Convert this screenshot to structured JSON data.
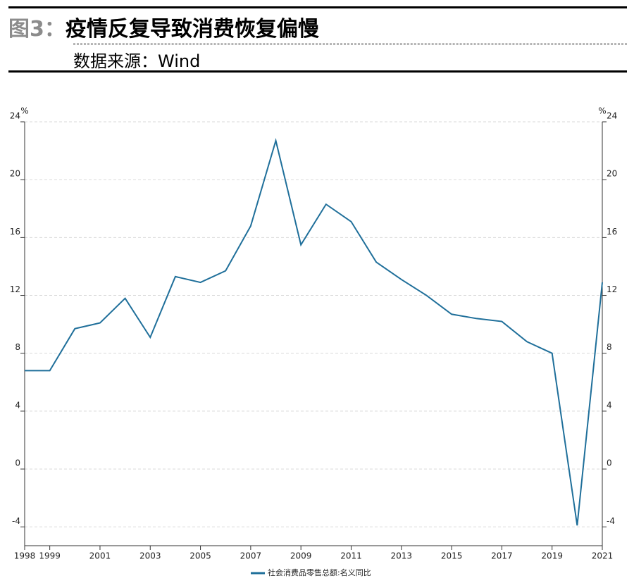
{
  "chart_data": {
    "type": "line",
    "figure_label": "图3：",
    "title": "疫情反复导致消费恢复偏慢",
    "source": "数据来源：Wind",
    "y_unit": "%",
    "y2_unit": "%",
    "x": [
      1998,
      1999,
      2000,
      2001,
      2002,
      2003,
      2004,
      2005,
      2006,
      2007,
      2008,
      2009,
      2010,
      2011,
      2012,
      2013,
      2014,
      2015,
      2016,
      2017,
      2018,
      2019,
      2020,
      2021
    ],
    "series": [
      {
        "name": "社会消费品零售总额:名义同比",
        "color": "#1f6f9a",
        "values": [
          6.8,
          6.8,
          9.7,
          10.1,
          11.8,
          9.1,
          13.3,
          12.9,
          13.7,
          16.8,
          22.7,
          15.5,
          18.3,
          17.1,
          14.3,
          13.1,
          12.0,
          10.7,
          10.4,
          10.2,
          8.8,
          8.0,
          -3.9,
          12.9
        ]
      }
    ],
    "xlim": [
      1998,
      2021
    ],
    "xticks": [
      1998,
      1999,
      2001,
      2003,
      2005,
      2007,
      2009,
      2011,
      2013,
      2015,
      2017,
      2019,
      2021
    ],
    "ylim": [
      -5.3,
      24
    ],
    "yticks": [
      -4,
      0,
      4,
      8,
      12,
      16,
      20,
      24
    ],
    "y2lim": [
      -5.3,
      24
    ],
    "y2ticks": [
      -4,
      0,
      4,
      8,
      12,
      16,
      20,
      24
    ],
    "grid": true
  }
}
